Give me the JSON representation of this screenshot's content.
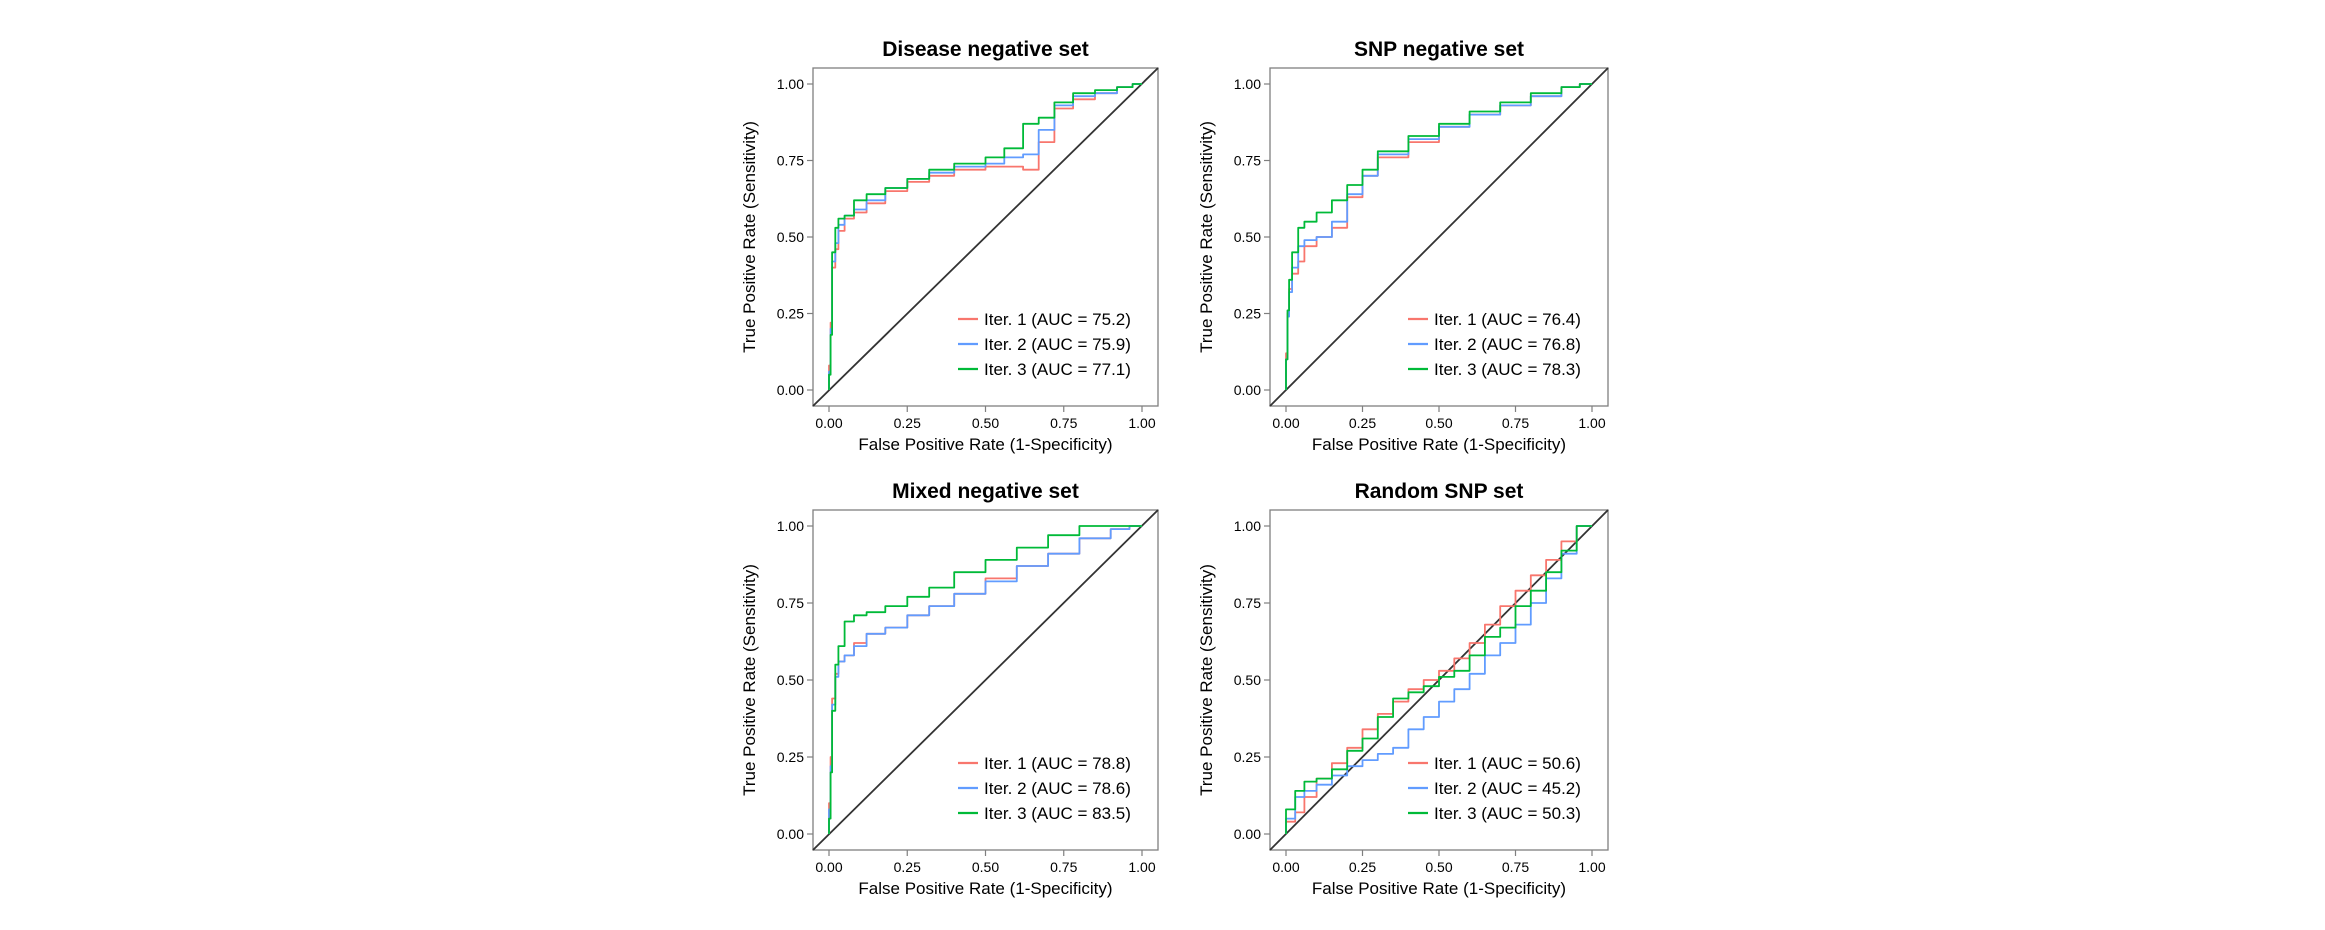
{
  "colors": {
    "iter1": "#f8766d",
    "iter2": "#619cff",
    "iter3": "#00ba38",
    "diagonal": "#333333",
    "frame": "#7f7f7f"
  },
  "chart_data": [
    {
      "type": "line",
      "title": "Disease negative set",
      "xlabel": "False Positive Rate (1-Specificity)",
      "ylabel": "True Positive Rate (Sensitivity)",
      "xlim": [
        0,
        1
      ],
      "ylim": [
        0,
        1
      ],
      "xticks": [
        "0.00",
        "0.25",
        "0.50",
        "0.75",
        "1.00"
      ],
      "yticks": [
        "0.00",
        "0.25",
        "0.50",
        "0.75",
        "1.00"
      ],
      "grid": false,
      "legend_position": "bottom-right",
      "series": [
        {
          "name": "Iter. 1 (AUC = 75.2)",
          "color": "#f8766d",
          "x": [
            0,
            0.005,
            0.01,
            0.02,
            0.03,
            0.05,
            0.08,
            0.12,
            0.18,
            0.25,
            0.32,
            0.4,
            0.5,
            0.56,
            0.62,
            0.67,
            0.72,
            0.78,
            0.85,
            0.92,
            0.97,
            1.0
          ],
          "y": [
            0,
            0.08,
            0.22,
            0.4,
            0.46,
            0.52,
            0.56,
            0.58,
            0.61,
            0.65,
            0.68,
            0.7,
            0.72,
            0.73,
            0.73,
            0.72,
            0.81,
            0.92,
            0.95,
            0.97,
            0.99,
            1.0
          ]
        },
        {
          "name": "Iter. 2 (AUC = 75.9)",
          "color": "#619cff",
          "x": [
            0,
            0.005,
            0.01,
            0.02,
            0.03,
            0.05,
            0.08,
            0.12,
            0.18,
            0.25,
            0.32,
            0.4,
            0.5,
            0.56,
            0.62,
            0.67,
            0.72,
            0.78,
            0.85,
            0.92,
            0.97,
            1.0
          ],
          "y": [
            0,
            0.06,
            0.2,
            0.42,
            0.48,
            0.54,
            0.57,
            0.59,
            0.62,
            0.66,
            0.69,
            0.71,
            0.73,
            0.74,
            0.76,
            0.77,
            0.85,
            0.93,
            0.96,
            0.97,
            0.99,
            1.0
          ]
        },
        {
          "name": "Iter. 3 (AUC = 77.1)",
          "color": "#00ba38",
          "x": [
            0,
            0.005,
            0.01,
            0.02,
            0.03,
            0.05,
            0.08,
            0.12,
            0.18,
            0.25,
            0.32,
            0.4,
            0.5,
            0.56,
            0.62,
            0.67,
            0.72,
            0.78,
            0.85,
            0.92,
            0.97,
            1.0
          ],
          "y": [
            0,
            0.05,
            0.18,
            0.45,
            0.53,
            0.56,
            0.57,
            0.62,
            0.64,
            0.66,
            0.69,
            0.72,
            0.74,
            0.76,
            0.79,
            0.87,
            0.89,
            0.94,
            0.97,
            0.98,
            0.99,
            1.0
          ]
        }
      ]
    },
    {
      "type": "line",
      "title": "SNP negative set",
      "xlabel": "False Positive Rate (1-Specificity)",
      "ylabel": "True Positive Rate (Sensitivity)",
      "xlim": [
        0,
        1
      ],
      "ylim": [
        0,
        1
      ],
      "xticks": [
        "0.00",
        "0.25",
        "0.50",
        "0.75",
        "1.00"
      ],
      "yticks": [
        "0.00",
        "0.25",
        "0.50",
        "0.75",
        "1.00"
      ],
      "grid": false,
      "legend_position": "bottom-right",
      "series": [
        {
          "name": "Iter. 1 (AUC = 76.4)",
          "color": "#f8766d",
          "x": [
            0,
            0.005,
            0.01,
            0.02,
            0.04,
            0.06,
            0.1,
            0.15,
            0.2,
            0.25,
            0.3,
            0.4,
            0.5,
            0.6,
            0.7,
            0.8,
            0.9,
            0.96,
            1.0
          ],
          "y": [
            0,
            0.12,
            0.25,
            0.33,
            0.38,
            0.42,
            0.47,
            0.5,
            0.53,
            0.63,
            0.7,
            0.76,
            0.81,
            0.86,
            0.9,
            0.93,
            0.96,
            0.99,
            1.0
          ]
        },
        {
          "name": "Iter. 2 (AUC = 76.8)",
          "color": "#619cff",
          "x": [
            0,
            0.005,
            0.01,
            0.02,
            0.04,
            0.06,
            0.1,
            0.15,
            0.2,
            0.25,
            0.3,
            0.4,
            0.5,
            0.6,
            0.7,
            0.8,
            0.9,
            0.96,
            1.0
          ],
          "y": [
            0,
            0.1,
            0.24,
            0.32,
            0.4,
            0.47,
            0.49,
            0.5,
            0.55,
            0.64,
            0.7,
            0.77,
            0.82,
            0.86,
            0.9,
            0.93,
            0.96,
            0.99,
            1.0
          ]
        },
        {
          "name": "Iter. 3 (AUC = 78.3)",
          "color": "#00ba38",
          "x": [
            0,
            0.005,
            0.01,
            0.02,
            0.04,
            0.06,
            0.1,
            0.15,
            0.2,
            0.25,
            0.3,
            0.4,
            0.5,
            0.6,
            0.7,
            0.8,
            0.9,
            0.96,
            1.0
          ],
          "y": [
            0,
            0.1,
            0.26,
            0.36,
            0.45,
            0.53,
            0.55,
            0.58,
            0.62,
            0.67,
            0.72,
            0.78,
            0.83,
            0.87,
            0.91,
            0.94,
            0.97,
            0.99,
            1.0
          ]
        }
      ]
    },
    {
      "type": "line",
      "title": "Mixed negative set",
      "xlabel": "False Positive Rate (1-Specificity)",
      "ylabel": "True Positive Rate (Sensitivity)",
      "xlim": [
        0,
        1
      ],
      "ylim": [
        0,
        1
      ],
      "xticks": [
        "0.00",
        "0.25",
        "0.50",
        "0.75",
        "1.00"
      ],
      "yticks": [
        "0.00",
        "0.25",
        "0.50",
        "0.75",
        "1.00"
      ],
      "grid": false,
      "legend_position": "bottom-right",
      "series": [
        {
          "name": "Iter. 1 (AUC = 78.8)",
          "color": "#f8766d",
          "x": [
            0,
            0.005,
            0.01,
            0.02,
            0.03,
            0.05,
            0.08,
            0.12,
            0.18,
            0.25,
            0.32,
            0.4,
            0.5,
            0.6,
            0.7,
            0.8,
            0.9,
            0.96,
            1.0
          ],
          "y": [
            0,
            0.1,
            0.25,
            0.44,
            0.52,
            0.56,
            0.58,
            0.62,
            0.65,
            0.67,
            0.71,
            0.74,
            0.78,
            0.83,
            0.87,
            0.91,
            0.96,
            0.99,
            1.0
          ]
        },
        {
          "name": "Iter. 2 (AUC = 78.6)",
          "color": "#619cff",
          "x": [
            0,
            0.005,
            0.01,
            0.02,
            0.03,
            0.05,
            0.08,
            0.12,
            0.18,
            0.25,
            0.32,
            0.4,
            0.5,
            0.6,
            0.7,
            0.8,
            0.9,
            0.96,
            1.0
          ],
          "y": [
            0,
            0.08,
            0.22,
            0.42,
            0.51,
            0.56,
            0.58,
            0.61,
            0.65,
            0.67,
            0.71,
            0.74,
            0.78,
            0.82,
            0.87,
            0.91,
            0.96,
            0.99,
            1.0
          ]
        },
        {
          "name": "Iter. 3 (AUC = 83.5)",
          "color": "#00ba38",
          "x": [
            0,
            0.005,
            0.01,
            0.02,
            0.03,
            0.05,
            0.08,
            0.12,
            0.18,
            0.25,
            0.32,
            0.4,
            0.5,
            0.6,
            0.7,
            0.8,
            0.9,
            0.96,
            1.0
          ],
          "y": [
            0,
            0.05,
            0.2,
            0.4,
            0.55,
            0.61,
            0.69,
            0.71,
            0.72,
            0.74,
            0.77,
            0.8,
            0.85,
            0.89,
            0.93,
            0.97,
            1.0,
            1.0,
            1.0
          ]
        }
      ]
    },
    {
      "type": "line",
      "title": "Random SNP set",
      "xlabel": "False Positive Rate (1-Specificity)",
      "ylabel": "True Positive Rate (Sensitivity)",
      "xlim": [
        0,
        1
      ],
      "ylim": [
        0,
        1
      ],
      "xticks": [
        "0.00",
        "0.25",
        "0.50",
        "0.75",
        "1.00"
      ],
      "yticks": [
        "0.00",
        "0.25",
        "0.50",
        "0.75",
        "1.00"
      ],
      "grid": false,
      "legend_position": "bottom-right",
      "series": [
        {
          "name": "Iter. 1 (AUC = 50.6)",
          "color": "#f8766d",
          "x": [
            0,
            0.03,
            0.06,
            0.1,
            0.15,
            0.2,
            0.25,
            0.3,
            0.35,
            0.4,
            0.45,
            0.5,
            0.55,
            0.6,
            0.65,
            0.7,
            0.75,
            0.8,
            0.85,
            0.9,
            0.95,
            1.0
          ],
          "y": [
            0,
            0.04,
            0.07,
            0.12,
            0.18,
            0.23,
            0.28,
            0.34,
            0.39,
            0.43,
            0.47,
            0.5,
            0.53,
            0.57,
            0.62,
            0.68,
            0.74,
            0.79,
            0.84,
            0.89,
            0.95,
            1.0
          ]
        },
        {
          "name": "Iter. 2 (AUC = 45.2)",
          "color": "#619cff",
          "x": [
            0,
            0.03,
            0.06,
            0.1,
            0.15,
            0.2,
            0.25,
            0.3,
            0.35,
            0.4,
            0.45,
            0.5,
            0.55,
            0.6,
            0.65,
            0.7,
            0.75,
            0.8,
            0.85,
            0.9,
            0.95,
            1.0
          ],
          "y": [
            0,
            0.05,
            0.12,
            0.14,
            0.16,
            0.19,
            0.22,
            0.24,
            0.26,
            0.28,
            0.34,
            0.38,
            0.43,
            0.47,
            0.52,
            0.58,
            0.62,
            0.68,
            0.75,
            0.83,
            0.91,
            1.0
          ]
        },
        {
          "name": "Iter. 3 (AUC = 50.3)",
          "color": "#00ba38",
          "x": [
            0,
            0.03,
            0.06,
            0.1,
            0.15,
            0.2,
            0.25,
            0.3,
            0.35,
            0.4,
            0.45,
            0.5,
            0.55,
            0.6,
            0.65,
            0.7,
            0.75,
            0.8,
            0.85,
            0.9,
            0.95,
            1.0
          ],
          "y": [
            0,
            0.08,
            0.14,
            0.17,
            0.18,
            0.21,
            0.27,
            0.31,
            0.38,
            0.44,
            0.46,
            0.48,
            0.51,
            0.53,
            0.58,
            0.64,
            0.67,
            0.74,
            0.79,
            0.85,
            0.92,
            1.0
          ]
        }
      ]
    }
  ]
}
